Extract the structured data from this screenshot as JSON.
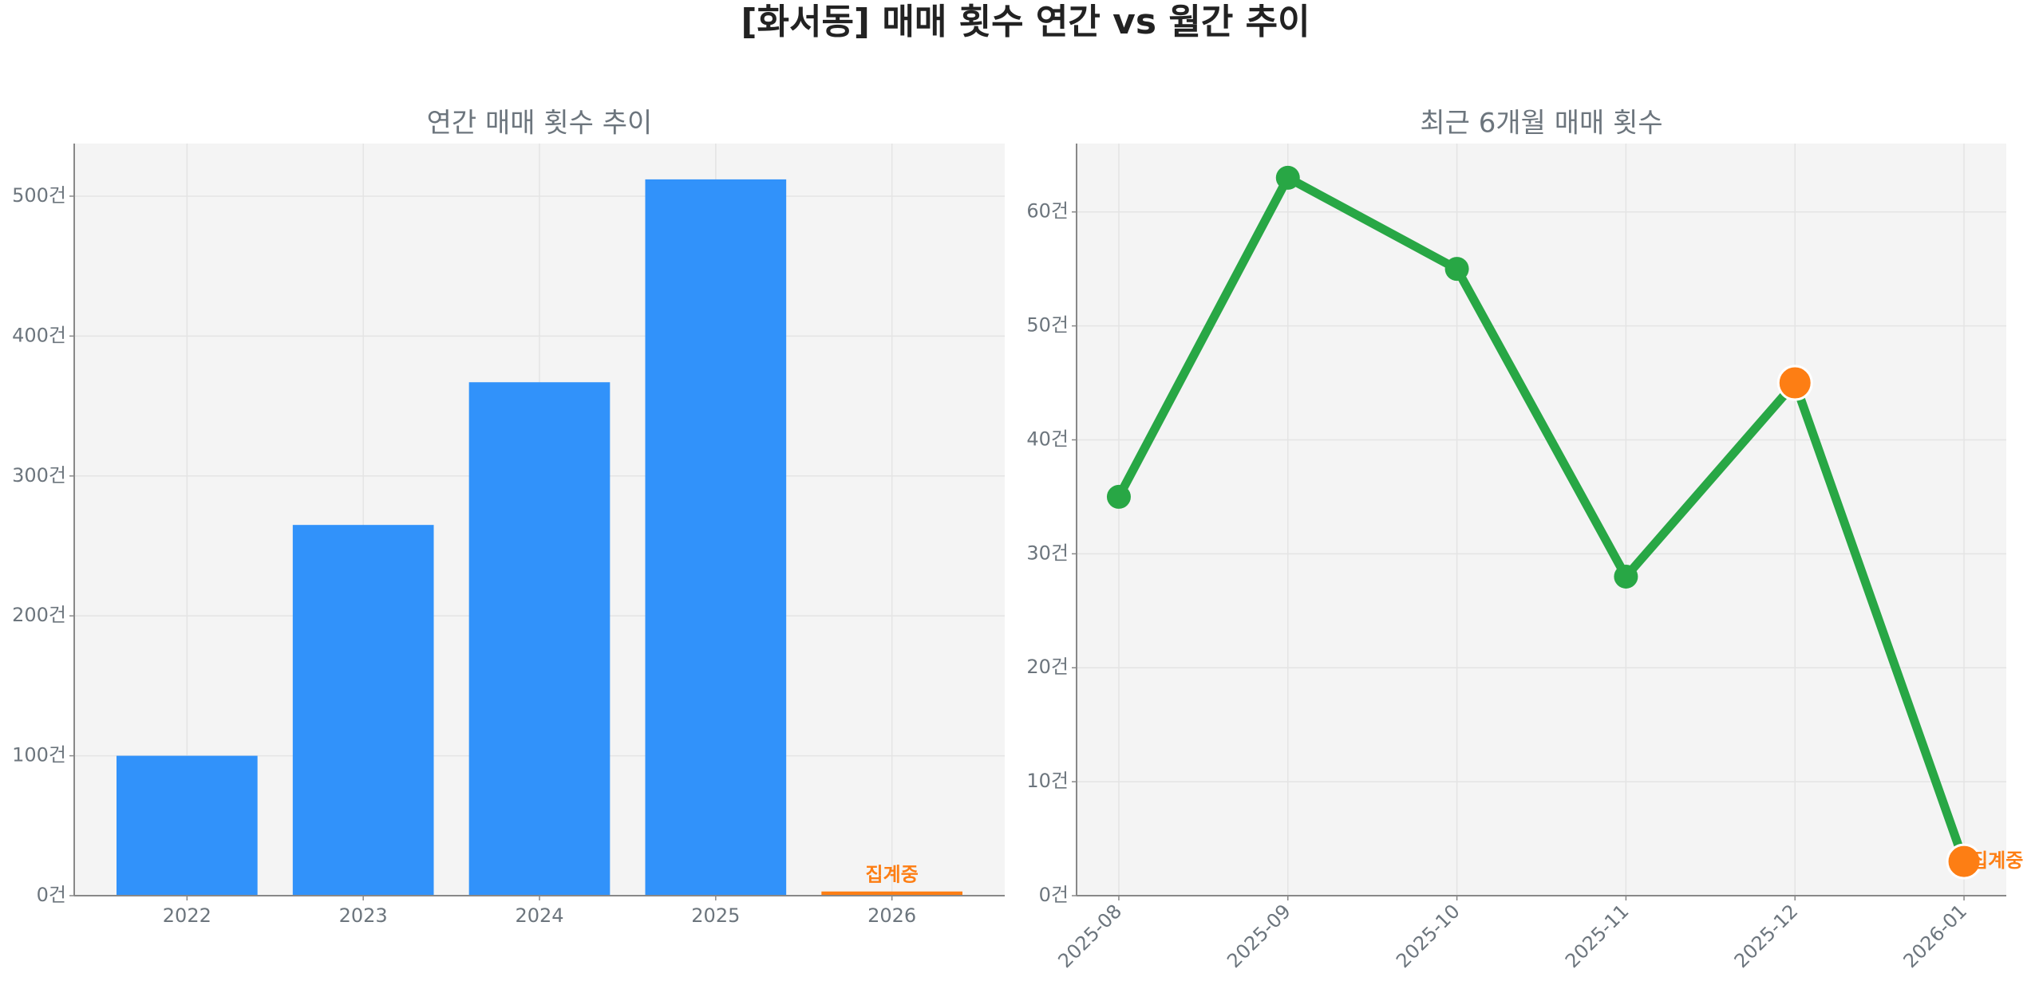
{
  "title": "[화서동] 매매 횟수 연간 vs 월간 추이",
  "chart_data": [
    {
      "type": "bar",
      "title": "연간 매매 횟수 추이",
      "categories": [
        "2022",
        "2023",
        "2024",
        "2025",
        "2026"
      ],
      "values": [
        100,
        265,
        367,
        512,
        3
      ],
      "colors": [
        "#3192fa",
        "#3192fa",
        "#3192fa",
        "#3192fa",
        "#fd7e14"
      ],
      "annotation": "집계중",
      "annotation_color": "#fd7e14",
      "ylim": [
        0,
        537.6
      ],
      "yticks": [
        {
          "value": 0,
          "label": "0건"
        },
        {
          "value": 100,
          "label": "100건"
        },
        {
          "value": 200,
          "label": "200건"
        },
        {
          "value": 300,
          "label": "300건"
        },
        {
          "value": 400,
          "label": "400건"
        },
        {
          "value": 500,
          "label": "500건"
        }
      ],
      "grid": true
    },
    {
      "type": "line",
      "title": "최근 6개월 매매 횟수",
      "categories": [
        "2025-08",
        "2025-09",
        "2025-10",
        "2025-11",
        "2025-12",
        "2026-01"
      ],
      "values": [
        35,
        63,
        55,
        28,
        45,
        3
      ],
      "color": "#28a745",
      "marker_colors": [
        "#28a745",
        "#28a745",
        "#28a745",
        "#28a745",
        "#fd7e14",
        "#fd7e14"
      ],
      "annotation": "집계중",
      "annotation_color": "#fd7e14",
      "ylim": [
        0,
        66
      ],
      "yticks": [
        {
          "value": 0,
          "label": "0건"
        },
        {
          "value": 10,
          "label": "10건"
        },
        {
          "value": 20,
          "label": "20건"
        },
        {
          "value": 30,
          "label": "30건"
        },
        {
          "value": 40,
          "label": "40건"
        },
        {
          "value": 50,
          "label": "50건"
        },
        {
          "value": 60,
          "label": "60건"
        }
      ],
      "grid": true
    }
  ]
}
